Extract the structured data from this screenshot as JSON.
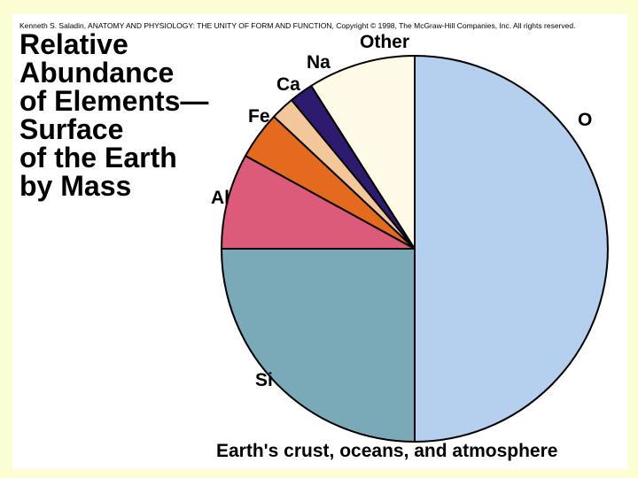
{
  "credit": "Kenneth S. Saladin, ANATOMY AND PHYSIOLOGY: THE UNITY OF FORM AND FUNCTION, Copyright © 1998, The McGraw-Hill Companies, Inc.  All rights reserved.",
  "title_lines": [
    "Relative",
    "Abundance",
    "of Elements—",
    "Surface",
    "of the Earth",
    "by Mass"
  ],
  "caption": "Earth's crust, oceans, and atmosphere",
  "chart_data": {
    "type": "pie",
    "title": "Relative Abundance of Elements—Surface of the Earth by Mass",
    "caption": "Earth's crust, oceans, and atmosphere",
    "start": "top, clockwise",
    "slices": [
      {
        "label": "O",
        "value": 50.0,
        "color": "#b5cfee"
      },
      {
        "label": "Si",
        "value": 25.0,
        "color": "#7aa9b8"
      },
      {
        "label": "Al",
        "value": 8.0,
        "color": "#dc5a7a"
      },
      {
        "label": "Fe",
        "value": 4.0,
        "color": "#e46a1e"
      },
      {
        "label": "Ca",
        "value": 2.0,
        "color": "#f4c79a"
      },
      {
        "label": "Na",
        "value": 2.0,
        "color": "#2e1a6e"
      },
      {
        "label": "Other",
        "value": 9.0,
        "color": "#fffbe6"
      }
    ]
  }
}
